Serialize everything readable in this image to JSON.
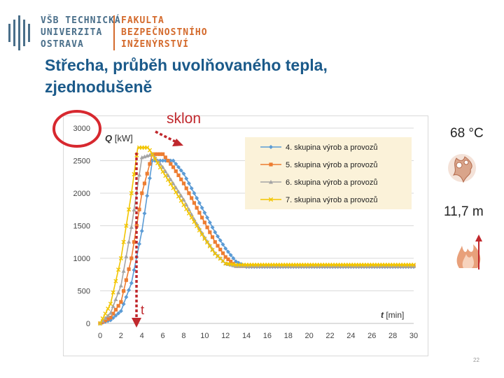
{
  "logo": {
    "university": [
      "VŠB TECHNICKÁ",
      "UNIVERZITA",
      "OSTRAVA"
    ],
    "faculty": [
      "FAKULTA",
      "BEZPEČNOSTNÍHO",
      "INŽENÝRSTVÍ"
    ]
  },
  "slide": {
    "title_line1": "Střecha, průběh uvolňovaného tepla,",
    "title_line2": "zjednodušeně",
    "annotation_slope": "sklon",
    "annotation_t": "t",
    "temperature": "68 °C",
    "height": "11,7 m",
    "page_number": "22",
    "icons": [
      "flame-burst-icon",
      "fire-arrow-up-icon"
    ]
  },
  "chart_data": {
    "type": "line",
    "ylabel_var": "Q",
    "ylabel_unit": "[kW]",
    "xlabel_var": "t",
    "xlabel_unit": "[min]",
    "xlim": [
      0,
      30
    ],
    "ylim": [
      0,
      3000
    ],
    "xticks": [
      "0",
      "2",
      "4",
      "6",
      "8",
      "10",
      "12",
      "14",
      "16",
      "18",
      "20",
      "22",
      "24",
      "26",
      "28",
      "30"
    ],
    "yticks": [
      "0",
      "500",
      "1000",
      "1500",
      "2000",
      "2500",
      "3000"
    ],
    "grid": "horizontal",
    "legend_position": "top-right",
    "series": [
      {
        "name": "4. skupina výrob a provozů",
        "color": "#5b9bd5",
        "marker": "diamond",
        "x": [
          0,
          1,
          2,
          3,
          4,
          5,
          6,
          7,
          8,
          9,
          10,
          11,
          12,
          13,
          14,
          15,
          30
        ],
        "y": [
          0,
          50,
          190,
          620,
          1420,
          2500,
          2500,
          2500,
          2300,
          2000,
          1700,
          1400,
          1150,
          950,
          870,
          870,
          870
        ]
      },
      {
        "name": "5. skupina výrob a provozů",
        "color": "#ed7d31",
        "marker": "square",
        "x": [
          0,
          1,
          2,
          3,
          4,
          5,
          6,
          7,
          8,
          9,
          10,
          11,
          12,
          13,
          14,
          30
        ],
        "y": [
          0,
          90,
          330,
          1000,
          2000,
          2600,
          2600,
          2400,
          2150,
          1850,
          1550,
          1250,
          1020,
          880,
          880,
          880
        ]
      },
      {
        "name": "6. skupina výrob a provozů",
        "color": "#a5a5a5",
        "marker": "triangle",
        "x": [
          0,
          1,
          2,
          3,
          4,
          5,
          6,
          7,
          8,
          9,
          10,
          11,
          12,
          13,
          14,
          30
        ],
        "y": [
          0,
          160,
          580,
          1480,
          2550,
          2600,
          2400,
          2150,
          1900,
          1600,
          1320,
          1080,
          920,
          880,
          880,
          880
        ]
      },
      {
        "name": "7. skupina výrob a provozů",
        "color": "#f2c500",
        "marker": "x",
        "x": [
          0,
          1,
          2,
          3,
          3.6,
          4.6,
          6,
          7,
          8,
          9,
          10,
          11,
          12,
          13,
          14,
          30
        ],
        "y": [
          0,
          300,
          1000,
          2000,
          2700,
          2700,
          2330,
          2080,
          1820,
          1560,
          1300,
          1070,
          920,
          900,
          900,
          900
        ]
      }
    ]
  }
}
